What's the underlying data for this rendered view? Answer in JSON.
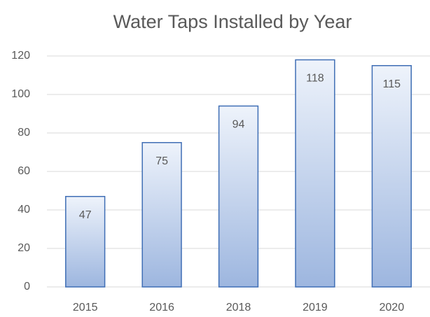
{
  "chart_data": {
    "type": "bar",
    "title": "Water Taps Installed by Year",
    "categories": [
      "2015",
      "2016",
      "2018",
      "2019",
      "2020"
    ],
    "values": [
      47,
      75,
      94,
      118,
      115
    ],
    "color": "#3f6eb5",
    "ylim": [
      0,
      120
    ],
    "yticks": [
      0,
      20,
      40,
      60,
      80,
      100,
      120
    ],
    "grid": true
  }
}
